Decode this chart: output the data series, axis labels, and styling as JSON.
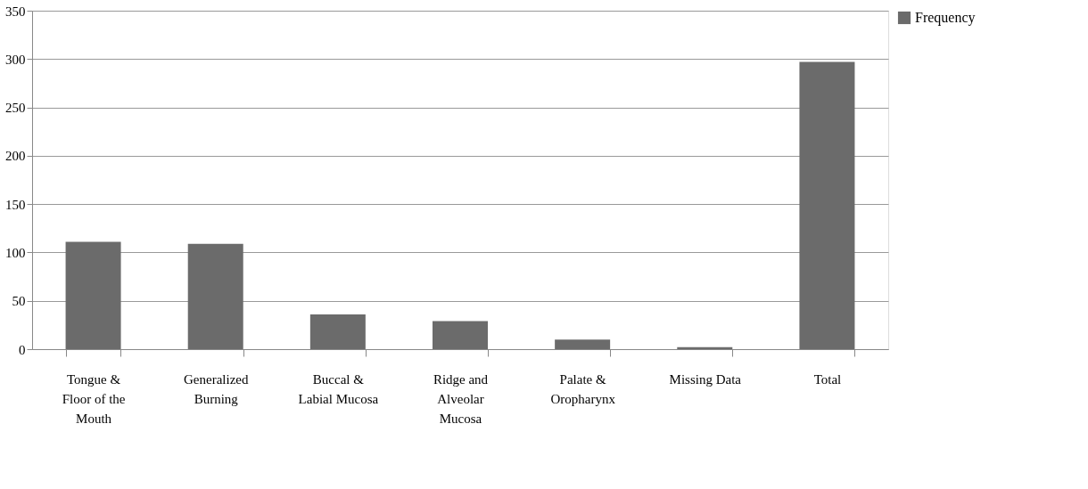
{
  "chart_data": {
    "type": "bar",
    "categories": [
      "Tongue & Floor of the Mouth",
      "Generalized Burning",
      "Buccal & Labial Mucosa",
      "Ridge and Alveolar Mucosa",
      "Palate & Oropharynx",
      "Missing Data",
      "Total"
    ],
    "series": [
      {
        "name": "Frequency",
        "color": "#6b6b6b",
        "values": [
          111,
          109,
          36,
          29,
          10,
          2,
          297
        ]
      }
    ],
    "ylim": [
      0,
      350
    ],
    "yticks": [
      0,
      50,
      100,
      150,
      200,
      250,
      300,
      350
    ],
    "grid": "y",
    "legend": "top right"
  }
}
